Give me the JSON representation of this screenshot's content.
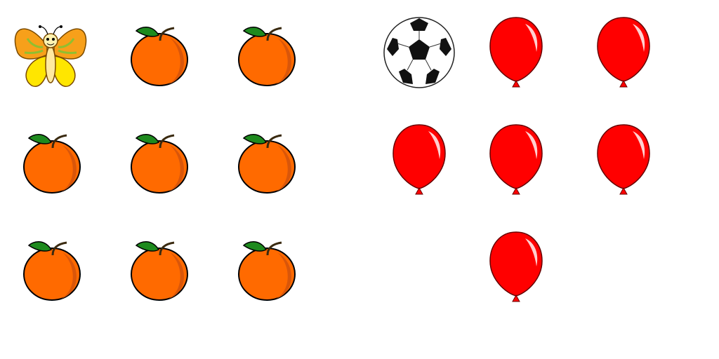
{
  "left_group": {
    "cells": [
      {
        "item": "butterfly-icon"
      },
      {
        "item": "orange-icon"
      },
      {
        "item": "orange-icon"
      },
      {
        "item": "orange-icon"
      },
      {
        "item": "orange-icon"
      },
      {
        "item": "orange-icon"
      },
      {
        "item": "orange-icon"
      },
      {
        "item": "orange-icon"
      },
      {
        "item": "orange-icon"
      }
    ]
  },
  "right_group": {
    "cells": [
      {
        "item": "soccer-ball-icon"
      },
      {
        "item": "balloon-icon"
      },
      {
        "item": "balloon-icon"
      },
      {
        "item": "balloon-icon"
      },
      {
        "item": "balloon-icon"
      },
      {
        "item": "balloon-icon"
      },
      {
        "item": "none"
      },
      {
        "item": "balloon-icon"
      },
      {
        "item": "none"
      }
    ]
  },
  "colors": {
    "orange": "#FF6A00",
    "orange_shade": "#D9560A",
    "leaf": "#1E8A1E",
    "balloon": "#FF0000",
    "butterfly_wing": "#F7A01A",
    "butterfly_inner": "#FFE600"
  }
}
